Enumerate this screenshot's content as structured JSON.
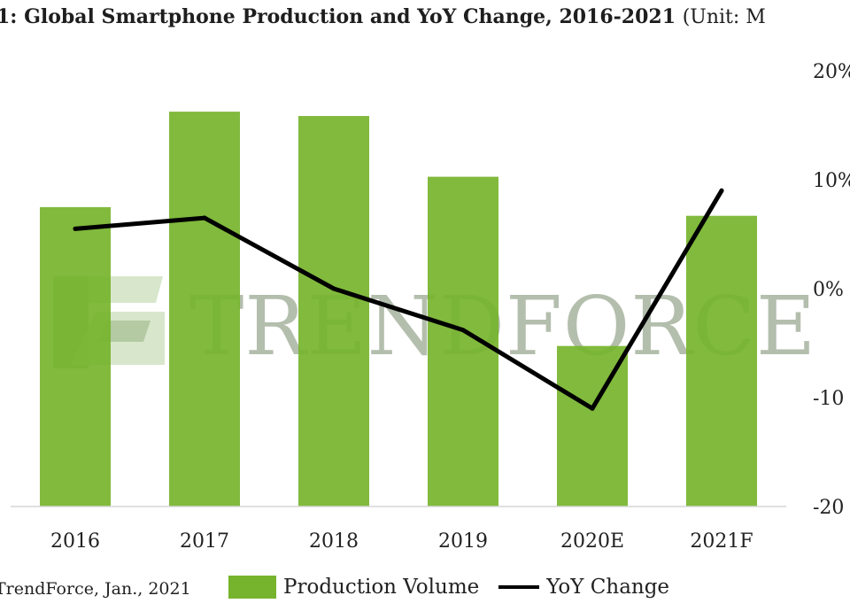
{
  "title": {
    "main": "1: Global Smartphone Production and YoY Change, 2016-2021",
    "unit": "(Unit: M"
  },
  "source": "TrendForce, Jan., 2021",
  "watermark": "TRENDFORCE",
  "colors": {
    "bar": "#76b42d",
    "line": "#000000"
  },
  "chart_data": {
    "type": "bar",
    "categories": [
      "2016",
      "2017",
      "2018",
      "2019",
      "2020E",
      "2021F"
    ],
    "series": [
      {
        "name": "Production Volume",
        "type": "bar",
        "values": [
          0.69,
          0.91,
          0.9,
          0.76,
          0.37,
          0.67
        ]
      },
      {
        "name": "YoY Change",
        "type": "line",
        "axis": "right",
        "values": [
          5.5,
          6.5,
          0,
          -3.8,
          -11,
          9
        ]
      }
    ],
    "y2_ticks": [
      "20%",
      "10%",
      "0%",
      "-10",
      "-20"
    ],
    "y2lim": [
      -20,
      20
    ],
    "legend": "bottom"
  }
}
